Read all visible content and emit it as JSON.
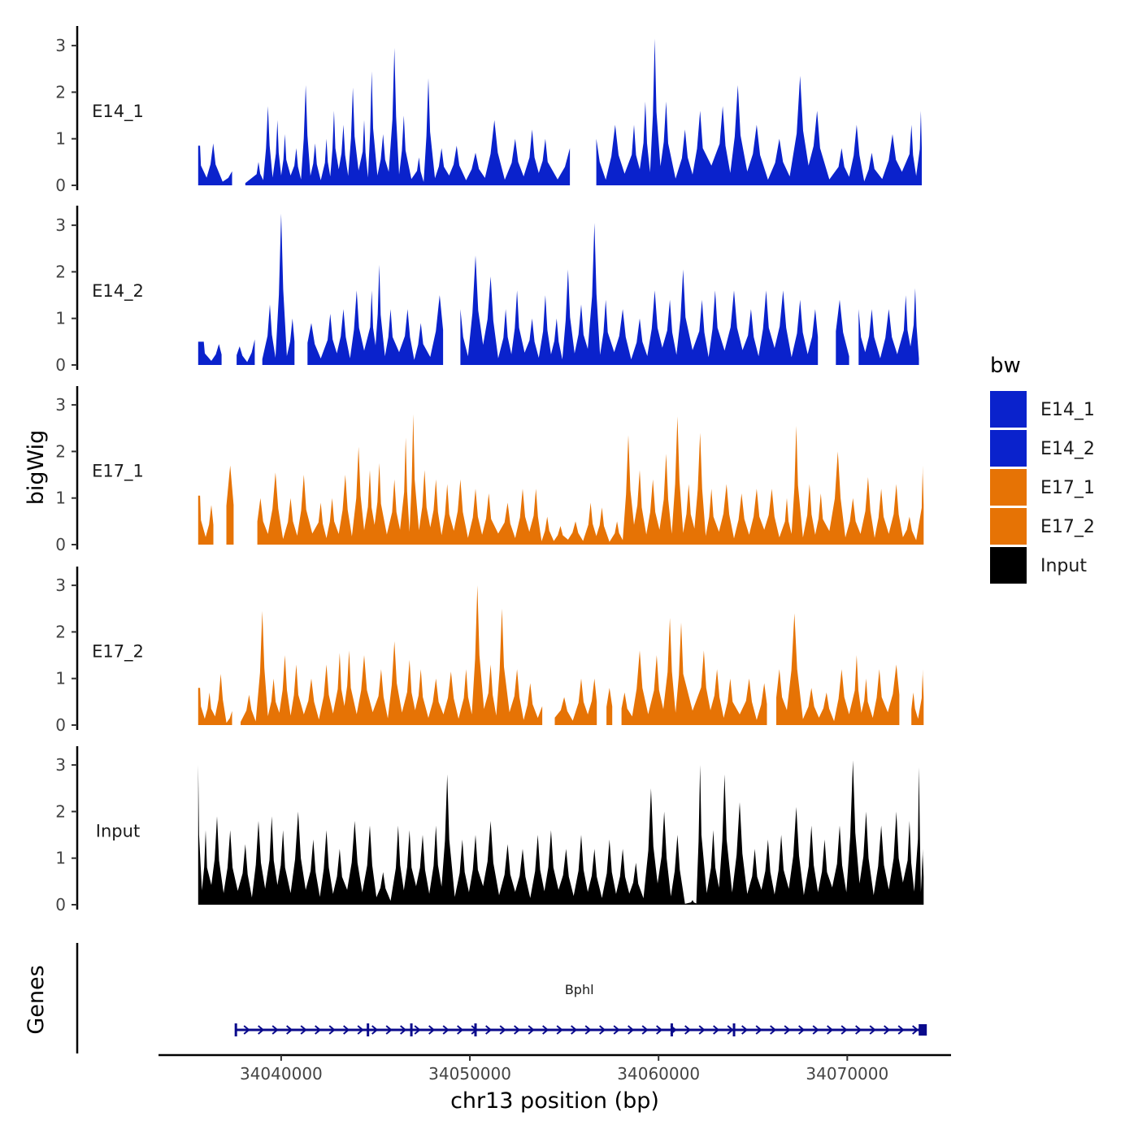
{
  "chart_data": {
    "type": "area",
    "title": "",
    "xlabel": "chr13 position (bp)",
    "ylabel": "bigWig",
    "gene_panel_label": "Genes",
    "xlim": [
      34033500,
      34075500
    ],
    "data_range": [
      34035600,
      34074000
    ],
    "x_ticks": [
      34040000,
      34050000,
      34060000,
      34070000
    ],
    "x_tick_labels": [
      "34040000",
      "34050000",
      "34060000",
      "34070000"
    ],
    "y_ticks": [
      0,
      1,
      2,
      3
    ],
    "y_tick_labels": [
      "0",
      "1",
      "2",
      "3"
    ],
    "ylim": [
      0,
      3.3
    ],
    "legend": {
      "title": "bw",
      "position": "right",
      "entries": [
        {
          "label": "E14_1",
          "color": "#0a22cc"
        },
        {
          "label": "E14_2",
          "color": "#0a22cc"
        },
        {
          "label": "E17_1",
          "color": "#e67305"
        },
        {
          "label": "E17_2",
          "color": "#e67305"
        },
        {
          "label": "Input",
          "color": "#000000"
        }
      ]
    },
    "series": [
      {
        "name": "E14_1",
        "color": "#0a22cc",
        "peaks": [
          [
            34035700,
            0.85
          ],
          [
            34036400,
            0.9
          ],
          [
            34037400,
            0.3
          ],
          [
            34038800,
            0.5
          ],
          [
            34039300,
            1.7
          ],
          [
            34039800,
            1.4
          ],
          [
            34040200,
            1.1
          ],
          [
            34040800,
            0.8
          ],
          [
            34041300,
            2.15
          ],
          [
            34041800,
            0.9
          ],
          [
            34042400,
            1.0
          ],
          [
            34042800,
            1.6
          ],
          [
            34043300,
            1.3
          ],
          [
            34043800,
            2.1
          ],
          [
            34044400,
            1.4
          ],
          [
            34044800,
            2.45
          ],
          [
            34045400,
            1.1
          ],
          [
            34046000,
            2.95
          ],
          [
            34046500,
            1.5
          ],
          [
            34047300,
            0.6
          ],
          [
            34047800,
            2.3
          ],
          [
            34048500,
            0.8
          ],
          [
            34049300,
            0.85
          ],
          [
            34050300,
            0.7
          ],
          [
            34051300,
            1.4
          ],
          [
            34052400,
            1.0
          ],
          [
            34053300,
            1.2
          ],
          [
            34054000,
            1.0
          ],
          [
            34055300,
            0.8
          ],
          [
            34056700,
            1.0
          ],
          [
            34057700,
            1.3
          ],
          [
            34058700,
            1.3
          ],
          [
            34059300,
            1.8
          ],
          [
            34059800,
            3.15
          ],
          [
            34060400,
            1.8
          ],
          [
            34061400,
            1.2
          ],
          [
            34062200,
            1.6
          ],
          [
            34063400,
            1.7
          ],
          [
            34064200,
            2.15
          ],
          [
            34065200,
            1.3
          ],
          [
            34066400,
            1.0
          ],
          [
            34067500,
            2.35
          ],
          [
            34068400,
            1.6
          ],
          [
            34069700,
            0.8
          ],
          [
            34070500,
            1.3
          ],
          [
            34071300,
            0.7
          ],
          [
            34072400,
            1.1
          ],
          [
            34073400,
            1.3
          ],
          [
            34073900,
            1.6
          ]
        ],
        "gaps": [
          [
            34037500,
            34038100
          ],
          [
            34055400,
            34056700
          ],
          [
            34073950,
            34074100
          ]
        ]
      },
      {
        "name": "E14_2",
        "color": "#0a22cc",
        "peaks": [
          [
            34035900,
            0.5
          ],
          [
            34036700,
            0.45
          ],
          [
            34037800,
            0.4
          ],
          [
            34038600,
            0.55
          ],
          [
            34039400,
            1.3
          ],
          [
            34040000,
            3.25
          ],
          [
            34040600,
            1.0
          ],
          [
            34041600,
            0.9
          ],
          [
            34042600,
            1.1
          ],
          [
            34043300,
            1.2
          ],
          [
            34044000,
            1.6
          ],
          [
            34044800,
            1.6
          ],
          [
            34045200,
            2.15
          ],
          [
            34045800,
            1.2
          ],
          [
            34046700,
            1.2
          ],
          [
            34047400,
            0.9
          ],
          [
            34048400,
            1.5
          ],
          [
            34049500,
            1.2
          ],
          [
            34050300,
            2.35
          ],
          [
            34051100,
            1.9
          ],
          [
            34051900,
            1.2
          ],
          [
            34052500,
            1.6
          ],
          [
            34053300,
            1.0
          ],
          [
            34054000,
            1.5
          ],
          [
            34054600,
            1.0
          ],
          [
            34055200,
            2.05
          ],
          [
            34055900,
            1.3
          ],
          [
            34056600,
            3.05
          ],
          [
            34057200,
            1.4
          ],
          [
            34058100,
            1.2
          ],
          [
            34059000,
            1.0
          ],
          [
            34059800,
            1.6
          ],
          [
            34060600,
            1.4
          ],
          [
            34061300,
            2.05
          ],
          [
            34062300,
            1.4
          ],
          [
            34063000,
            1.6
          ],
          [
            34064000,
            1.6
          ],
          [
            34064900,
            1.2
          ],
          [
            34065700,
            1.6
          ],
          [
            34066600,
            1.6
          ],
          [
            34067500,
            1.4
          ],
          [
            34068300,
            1.2
          ],
          [
            34069600,
            1.4
          ],
          [
            34070600,
            1.2
          ],
          [
            34071300,
            1.2
          ],
          [
            34072200,
            1.2
          ],
          [
            34073100,
            1.5
          ],
          [
            34073600,
            1.65
          ],
          [
            34074000,
            0.9
          ]
        ],
        "gaps": [
          [
            34037100,
            34037400
          ],
          [
            34038700,
            34038900
          ],
          [
            34040900,
            34041300
          ],
          [
            34048600,
            34049500
          ],
          [
            34068500,
            34069200
          ],
          [
            34070100,
            34070500
          ],
          [
            34073800,
            34074700
          ]
        ]
      },
      {
        "name": "E17_1",
        "color": "#e67305",
        "peaks": [
          [
            34035700,
            1.05
          ],
          [
            34036300,
            0.85
          ],
          [
            34037300,
            1.7
          ],
          [
            34038900,
            1.0
          ],
          [
            34039700,
            1.55
          ],
          [
            34040500,
            1.0
          ],
          [
            34041200,
            1.5
          ],
          [
            34042100,
            0.9
          ],
          [
            34042700,
            1.0
          ],
          [
            34043400,
            1.5
          ],
          [
            34044100,
            2.1
          ],
          [
            34044700,
            1.6
          ],
          [
            34045200,
            1.75
          ],
          [
            34046000,
            1.4
          ],
          [
            34046600,
            2.3
          ],
          [
            34047000,
            2.8
          ],
          [
            34047600,
            1.6
          ],
          [
            34048200,
            1.4
          ],
          [
            34048800,
            1.3
          ],
          [
            34049500,
            1.4
          ],
          [
            34050300,
            1.2
          ],
          [
            34051000,
            1.1
          ],
          [
            34052000,
            0.9
          ],
          [
            34052800,
            1.2
          ],
          [
            34053500,
            1.2
          ],
          [
            34054100,
            0.6
          ],
          [
            34054800,
            0.4
          ],
          [
            34055600,
            0.5
          ],
          [
            34056400,
            0.9
          ],
          [
            34057000,
            0.8
          ],
          [
            34057800,
            0.5
          ],
          [
            34058400,
            2.35
          ],
          [
            34059000,
            1.6
          ],
          [
            34059700,
            1.4
          ],
          [
            34060400,
            1.95
          ],
          [
            34061000,
            2.75
          ],
          [
            34061600,
            1.3
          ],
          [
            34062200,
            2.4
          ],
          [
            34062800,
            1.2
          ],
          [
            34063600,
            1.3
          ],
          [
            34064400,
            1.1
          ],
          [
            34065200,
            1.2
          ],
          [
            34066000,
            1.2
          ],
          [
            34066800,
            1.0
          ],
          [
            34067300,
            2.55
          ],
          [
            34068000,
            1.3
          ],
          [
            34068600,
            1.1
          ],
          [
            34069500,
            2.0
          ],
          [
            34070300,
            1.0
          ],
          [
            34071100,
            1.45
          ],
          [
            34071800,
            1.2
          ],
          [
            34072600,
            1.3
          ],
          [
            34073300,
            0.6
          ],
          [
            34074000,
            1.7
          ]
        ],
        "gaps": [
          [
            34036600,
            34037000
          ],
          [
            34037600,
            34038300
          ]
        ]
      },
      {
        "name": "E17_2",
        "color": "#e67305",
        "peaks": [
          [
            34035700,
            0.8
          ],
          [
            34036200,
            0.7
          ],
          [
            34036800,
            1.1
          ],
          [
            34037400,
            0.3
          ],
          [
            34038300,
            0.65
          ],
          [
            34039000,
            2.45
          ],
          [
            34039600,
            1.0
          ],
          [
            34040200,
            1.5
          ],
          [
            34040800,
            1.3
          ],
          [
            34041600,
            1.0
          ],
          [
            34042400,
            1.3
          ],
          [
            34043100,
            1.55
          ],
          [
            34043600,
            1.6
          ],
          [
            34044400,
            1.5
          ],
          [
            34045300,
            1.2
          ],
          [
            34046000,
            1.8
          ],
          [
            34046800,
            1.4
          ],
          [
            34047400,
            1.2
          ],
          [
            34048200,
            1.0
          ],
          [
            34049000,
            1.15
          ],
          [
            34049800,
            1.2
          ],
          [
            34050400,
            3.0
          ],
          [
            34051100,
            1.3
          ],
          [
            34051700,
            2.5
          ],
          [
            34052500,
            1.2
          ],
          [
            34053200,
            0.9
          ],
          [
            34054000,
            0.8
          ],
          [
            34055000,
            0.6
          ],
          [
            34055900,
            1.0
          ],
          [
            34056600,
            1.0
          ],
          [
            34057400,
            0.8
          ],
          [
            34058200,
            0.7
          ],
          [
            34059000,
            1.6
          ],
          [
            34059900,
            1.5
          ],
          [
            34060600,
            2.3
          ],
          [
            34061200,
            2.2
          ],
          [
            34062400,
            1.6
          ],
          [
            34063100,
            1.2
          ],
          [
            34063800,
            1.0
          ],
          [
            34064800,
            1.0
          ],
          [
            34065600,
            0.9
          ],
          [
            34066400,
            1.2
          ],
          [
            34067200,
            2.4
          ],
          [
            34068100,
            0.8
          ],
          [
            34068900,
            0.7
          ],
          [
            34069700,
            1.2
          ],
          [
            34070500,
            1.5
          ],
          [
            34071000,
            1.0
          ],
          [
            34071700,
            1.2
          ],
          [
            34072600,
            1.3
          ],
          [
            34073500,
            0.7
          ],
          [
            34074000,
            1.2
          ]
        ],
        "gaps": [
          [
            34037500,
            34037700
          ],
          [
            34053900,
            34054200
          ],
          [
            34056900,
            34057100
          ],
          [
            34057600,
            34058000
          ],
          [
            34065900,
            34066100
          ],
          [
            34073000,
            34073200
          ]
        ]
      },
      {
        "name": "Input",
        "color": "#000000",
        "peaks": [
          [
            34035600,
            3.0
          ],
          [
            34036000,
            1.6
          ],
          [
            34036600,
            1.9
          ],
          [
            34037300,
            1.6
          ],
          [
            34038100,
            1.3
          ],
          [
            34038800,
            1.8
          ],
          [
            34039500,
            1.9
          ],
          [
            34040100,
            1.6
          ],
          [
            34040900,
            2.0
          ],
          [
            34041700,
            1.4
          ],
          [
            34042400,
            1.6
          ],
          [
            34043100,
            1.2
          ],
          [
            34043900,
            1.8
          ],
          [
            34044700,
            1.7
          ],
          [
            34045400,
            0.7
          ],
          [
            34046200,
            1.7
          ],
          [
            34046800,
            1.6
          ],
          [
            34047500,
            1.5
          ],
          [
            34048200,
            1.7
          ],
          [
            34048800,
            2.8
          ],
          [
            34049600,
            1.4
          ],
          [
            34050300,
            1.5
          ],
          [
            34051100,
            1.8
          ],
          [
            34052000,
            1.3
          ],
          [
            34052800,
            1.2
          ],
          [
            34053600,
            1.5
          ],
          [
            34054300,
            1.6
          ],
          [
            34055100,
            1.2
          ],
          [
            34055900,
            1.5
          ],
          [
            34056600,
            1.2
          ],
          [
            34057400,
            1.4
          ],
          [
            34058100,
            1.2
          ],
          [
            34058800,
            0.9
          ],
          [
            34059600,
            2.5
          ],
          [
            34060300,
            2.0
          ],
          [
            34061000,
            1.5
          ],
          [
            34061800,
            0.1
          ],
          [
            34062200,
            3.0
          ],
          [
            34062900,
            1.6
          ],
          [
            34063500,
            2.8
          ],
          [
            34064300,
            2.2
          ],
          [
            34065100,
            1.2
          ],
          [
            34065800,
            1.4
          ],
          [
            34066500,
            1.5
          ],
          [
            34067300,
            2.1
          ],
          [
            34068100,
            1.7
          ],
          [
            34068800,
            1.4
          ],
          [
            34069600,
            1.7
          ],
          [
            34070300,
            3.1
          ],
          [
            34071000,
            2.0
          ],
          [
            34071800,
            1.7
          ],
          [
            34072600,
            2.0
          ],
          [
            34073300,
            1.8
          ],
          [
            34073800,
            2.95
          ],
          [
            34074000,
            1.2
          ]
        ],
        "gaps": []
      }
    ],
    "gene": {
      "name": "Bphl",
      "strand": "+",
      "start": 34037600,
      "end": 34074000,
      "exons": [
        34037600,
        34044600,
        34046900,
        34050300,
        34060700,
        34064000,
        34074000
      ]
    }
  }
}
